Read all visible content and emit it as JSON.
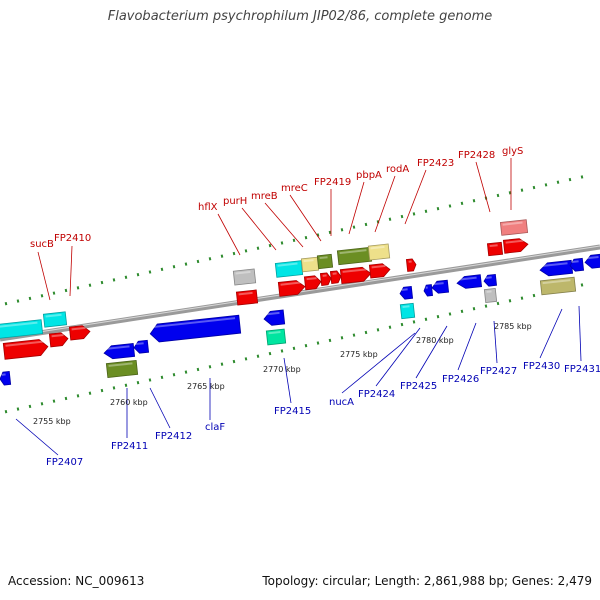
{
  "title": "Flavobacterium psychrophilum JIP02/86, complete genome",
  "footer": {
    "accession": "Accession: NC_009613",
    "stats": "Topology: circular; Length: 2,861,988 bp; Genes: 2,479"
  },
  "colors": {
    "red": "#ee0000",
    "blue": "#0000ee",
    "cyan": "#00e5e5",
    "olive": "#6b8e23",
    "khaki": "#eee08a",
    "gray": "#bfbfbf",
    "pink": "#f07f7f",
    "spring": "#00e5a0",
    "darkkhaki": "#bdb76b",
    "top_label": "#c00000",
    "bottom_label": "#0000b4"
  },
  "top_labels": [
    "sucB",
    "FP2410",
    "hflX",
    "purH",
    "mreB",
    "mreC",
    "FP2419",
    "pbpA",
    "rodA",
    "FP2423",
    "FP2428",
    "glyS"
  ],
  "bottom_labels": [
    "FP2407",
    "FP2411",
    "FP2412",
    "claF",
    "FP2415",
    "nucA",
    "FP2424",
    "FP2425",
    "FP2426",
    "FP2427",
    "FP2430",
    "FP2431"
  ],
  "kbp_labels": [
    "2755 kbp",
    "2760 kbp",
    "2765 kbp",
    "2770 kbp",
    "2775 kbp",
    "2780 kbp",
    "2785 kbp"
  ]
}
